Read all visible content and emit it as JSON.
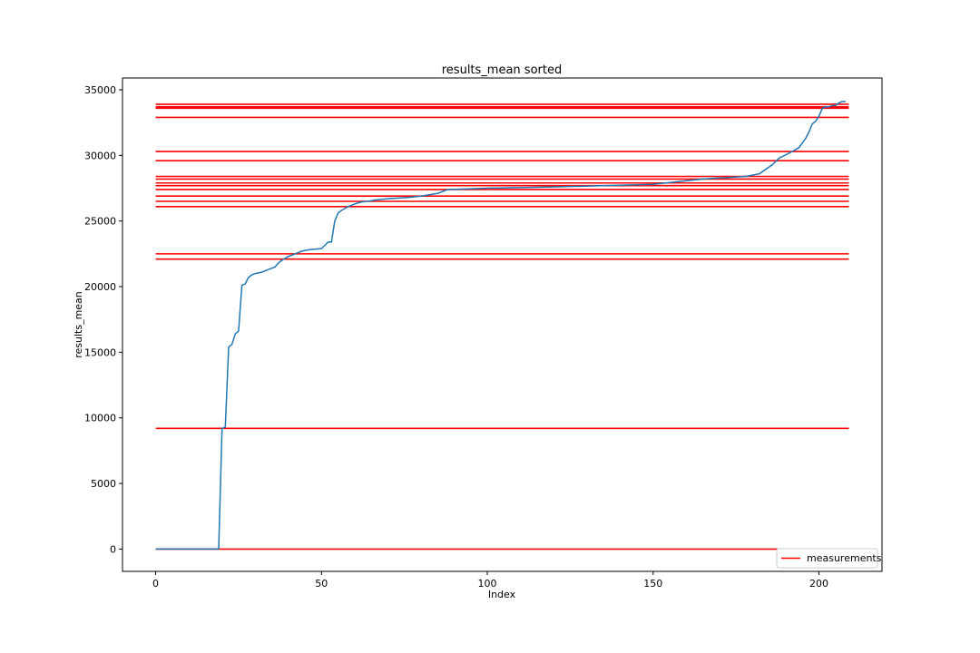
{
  "chart_data": {
    "type": "line",
    "title": "results_mean sorted",
    "xlabel": "Index",
    "ylabel": "results_mean",
    "xlim": [
      -10,
      219
    ],
    "ylim": [
      -1700,
      35900
    ],
    "xticks": [
      0,
      50,
      100,
      150,
      200
    ],
    "yticks": [
      0,
      5000,
      10000,
      15000,
      20000,
      25000,
      30000,
      35000
    ],
    "grid": false,
    "legend": {
      "position": "lower right",
      "entries": [
        "measurements"
      ]
    },
    "series": [
      {
        "kind": "line",
        "color": "#1f77b4",
        "x": [
          0,
          19,
          20,
          21,
          22,
          23,
          24,
          25,
          26,
          27,
          28,
          29,
          30,
          32,
          34,
          36,
          37,
          38,
          40,
          42,
          44,
          46,
          48,
          50,
          52,
          53,
          54,
          55,
          56,
          58,
          60,
          62,
          64,
          66,
          70,
          76,
          80,
          85,
          88,
          100,
          120,
          150,
          165,
          178,
          182,
          186,
          188,
          192,
          194,
          196,
          197,
          198,
          199,
          200,
          201,
          202,
          203,
          204,
          205,
          206,
          207,
          208
        ],
        "y": [
          0,
          0,
          9200,
          9300,
          15400,
          15600,
          16400,
          16600,
          20100,
          20200,
          20700,
          20900,
          21000,
          21100,
          21300,
          21500,
          21800,
          22000,
          22300,
          22500,
          22700,
          22800,
          22850,
          22900,
          23400,
          23400,
          25000,
          25600,
          25800,
          26100,
          26300,
          26450,
          26500,
          26600,
          26700,
          26800,
          26900,
          27100,
          27400,
          27500,
          27600,
          27800,
          28200,
          28400,
          28600,
          29300,
          29800,
          30300,
          30600,
          31300,
          31800,
          32400,
          32600,
          33000,
          33600,
          33700,
          33700,
          33800,
          33800,
          34000,
          34100,
          34100
        ]
      },
      {
        "name": "measurements",
        "kind": "hlines",
        "color": "#ff0000",
        "xmin": 0,
        "xmax": 209,
        "values": [
          0,
          9200,
          22100,
          22500,
          26100,
          26500,
          26900,
          27400,
          27700,
          27900,
          28200,
          28400,
          29600,
          30300,
          32900,
          33600,
          33700,
          33900
        ]
      }
    ]
  }
}
